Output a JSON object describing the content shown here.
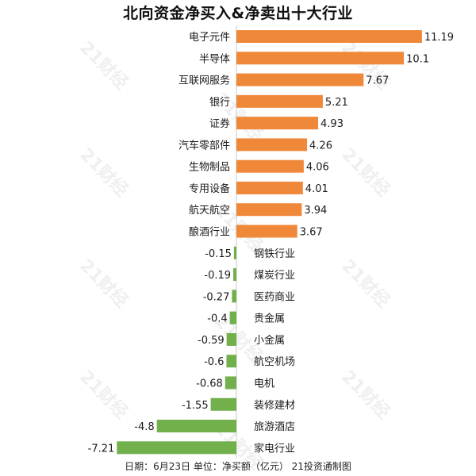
{
  "title": "北向资金净买入&净卖出十大行业",
  "footer": "日期：6月23日  单位：净买额（亿元）  21投资通制图",
  "watermark": "21财经",
  "colors": {
    "positive": "#f0883a",
    "negative": "#72b04b",
    "axis": "#c8c8c8",
    "text": "#1a1a1a"
  },
  "chart_data": {
    "type": "bar",
    "orientation": "horizontal",
    "title": "北向资金净买入&净卖出十大行业",
    "categories": [
      "电子元件",
      "半导体",
      "互联网服务",
      "银行",
      "证券",
      "汽车零部件",
      "生物制品",
      "专用设备",
      "航天航空",
      "酿酒行业",
      "钢铁行业",
      "煤炭行业",
      "医药商业",
      "贵金属",
      "小金属",
      "航空机场",
      "电机",
      "装修建材",
      "旅游酒店",
      "家电行业"
    ],
    "values": [
      11.19,
      10.1,
      7.67,
      5.21,
      4.93,
      4.26,
      4.06,
      4.01,
      3.94,
      3.67,
      -0.15,
      -0.19,
      -0.27,
      -0.4,
      -0.59,
      -0.6,
      -0.68,
      -1.55,
      -4.8,
      -7.21
    ],
    "value_labels": [
      "11.19",
      "10.1",
      "7.67",
      "5.21",
      "4.93",
      "4.26",
      "4.06",
      "4.01",
      "3.94",
      "3.67",
      "-0.15",
      "-0.19",
      "-0.27",
      "-0.4",
      "-0.59",
      "-0.6",
      "-0.68",
      "-1.55",
      "-4.8",
      "-7.21"
    ],
    "xlabel": "",
    "ylabel": "",
    "xlim": [
      -7.21,
      11.19
    ],
    "grid": false,
    "legend": "none"
  }
}
